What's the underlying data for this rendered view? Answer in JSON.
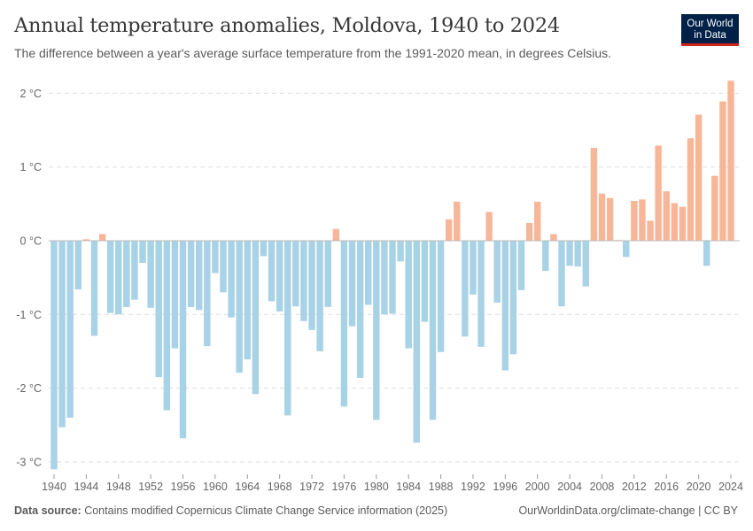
{
  "header": {
    "title": "Annual temperature anomalies, Moldova, 1940 to 2024",
    "subtitle": "The difference between a year's average surface temperature from the 1991-2020 mean, in degrees Celsius.",
    "logo_line1": "Our World",
    "logo_line2": "in Data"
  },
  "footer": {
    "source_label": "Data source:",
    "source_text": " Contains modified Copernicus Climate Change Service information (2025)",
    "link": "OurWorldinData.org/climate-change | CC BY"
  },
  "colors": {
    "positive": "#f7b698",
    "negative": "#a8d2e6",
    "logo_bg": "#002147",
    "logo_accent": "#ce261e"
  },
  "chart_data": {
    "type": "bar",
    "title": "Annual temperature anomalies, Moldova, 1940 to 2024",
    "xlabel": "",
    "ylabel": "",
    "unit": "°C",
    "ylim": [
      -3.1,
      2.2
    ],
    "yticks": [
      -3,
      -2,
      -1,
      0,
      1,
      2
    ],
    "ytick_labels": [
      "-3 °C",
      "-2 °C",
      "-1 °C",
      "0 °C",
      "1 °C",
      "2 °C"
    ],
    "xticks": [
      1940,
      1944,
      1948,
      1952,
      1956,
      1960,
      1964,
      1968,
      1972,
      1976,
      1980,
      1984,
      1988,
      1992,
      1996,
      2000,
      2004,
      2008,
      2012,
      2016,
      2020,
      2024
    ],
    "grid": true,
    "legend": "none",
    "x": [
      1940,
      1941,
      1942,
      1943,
      1944,
      1945,
      1946,
      1947,
      1948,
      1949,
      1950,
      1951,
      1952,
      1953,
      1954,
      1955,
      1956,
      1957,
      1958,
      1959,
      1960,
      1961,
      1962,
      1963,
      1964,
      1965,
      1966,
      1967,
      1968,
      1969,
      1970,
      1971,
      1972,
      1973,
      1974,
      1975,
      1976,
      1977,
      1978,
      1979,
      1980,
      1981,
      1982,
      1983,
      1984,
      1985,
      1986,
      1987,
      1988,
      1989,
      1990,
      1991,
      1992,
      1993,
      1994,
      1995,
      1996,
      1997,
      1998,
      1999,
      2000,
      2001,
      2002,
      2003,
      2004,
      2005,
      2006,
      2007,
      2008,
      2009,
      2010,
      2011,
      2012,
      2013,
      2014,
      2015,
      2016,
      2017,
      2018,
      2019,
      2020,
      2021,
      2022,
      2023,
      2024
    ],
    "values": [
      -3.1,
      -2.53,
      -2.4,
      -0.66,
      0.02,
      -1.29,
      0.09,
      -0.98,
      -1.0,
      -0.9,
      -0.8,
      -0.3,
      -0.91,
      -1.85,
      -2.3,
      -1.46,
      -2.68,
      -0.9,
      -0.94,
      -1.43,
      -0.44,
      -0.7,
      -1.04,
      -1.79,
      -1.61,
      -2.08,
      -0.21,
      -0.82,
      -0.96,
      -2.37,
      -0.89,
      -1.09,
      -1.21,
      -1.5,
      -0.9,
      0.16,
      -2.25,
      -1.16,
      -1.86,
      -0.87,
      -2.43,
      -1.0,
      -0.99,
      -0.28,
      -1.46,
      -2.74,
      -1.1,
      -2.43,
      -1.51,
      0.29,
      0.53,
      -1.3,
      -0.73,
      -1.44,
      0.39,
      -0.84,
      -1.76,
      -1.54,
      -0.67,
      0.24,
      0.53,
      -0.41,
      0.09,
      -0.89,
      -0.34,
      -0.35,
      -0.62,
      1.26,
      0.64,
      0.58,
      0.01,
      -0.22,
      0.54,
      0.56,
      0.27,
      1.29,
      0.67,
      0.51,
      0.46,
      1.39,
      1.71,
      -0.34,
      0.88,
      1.89,
      2.17
    ]
  }
}
